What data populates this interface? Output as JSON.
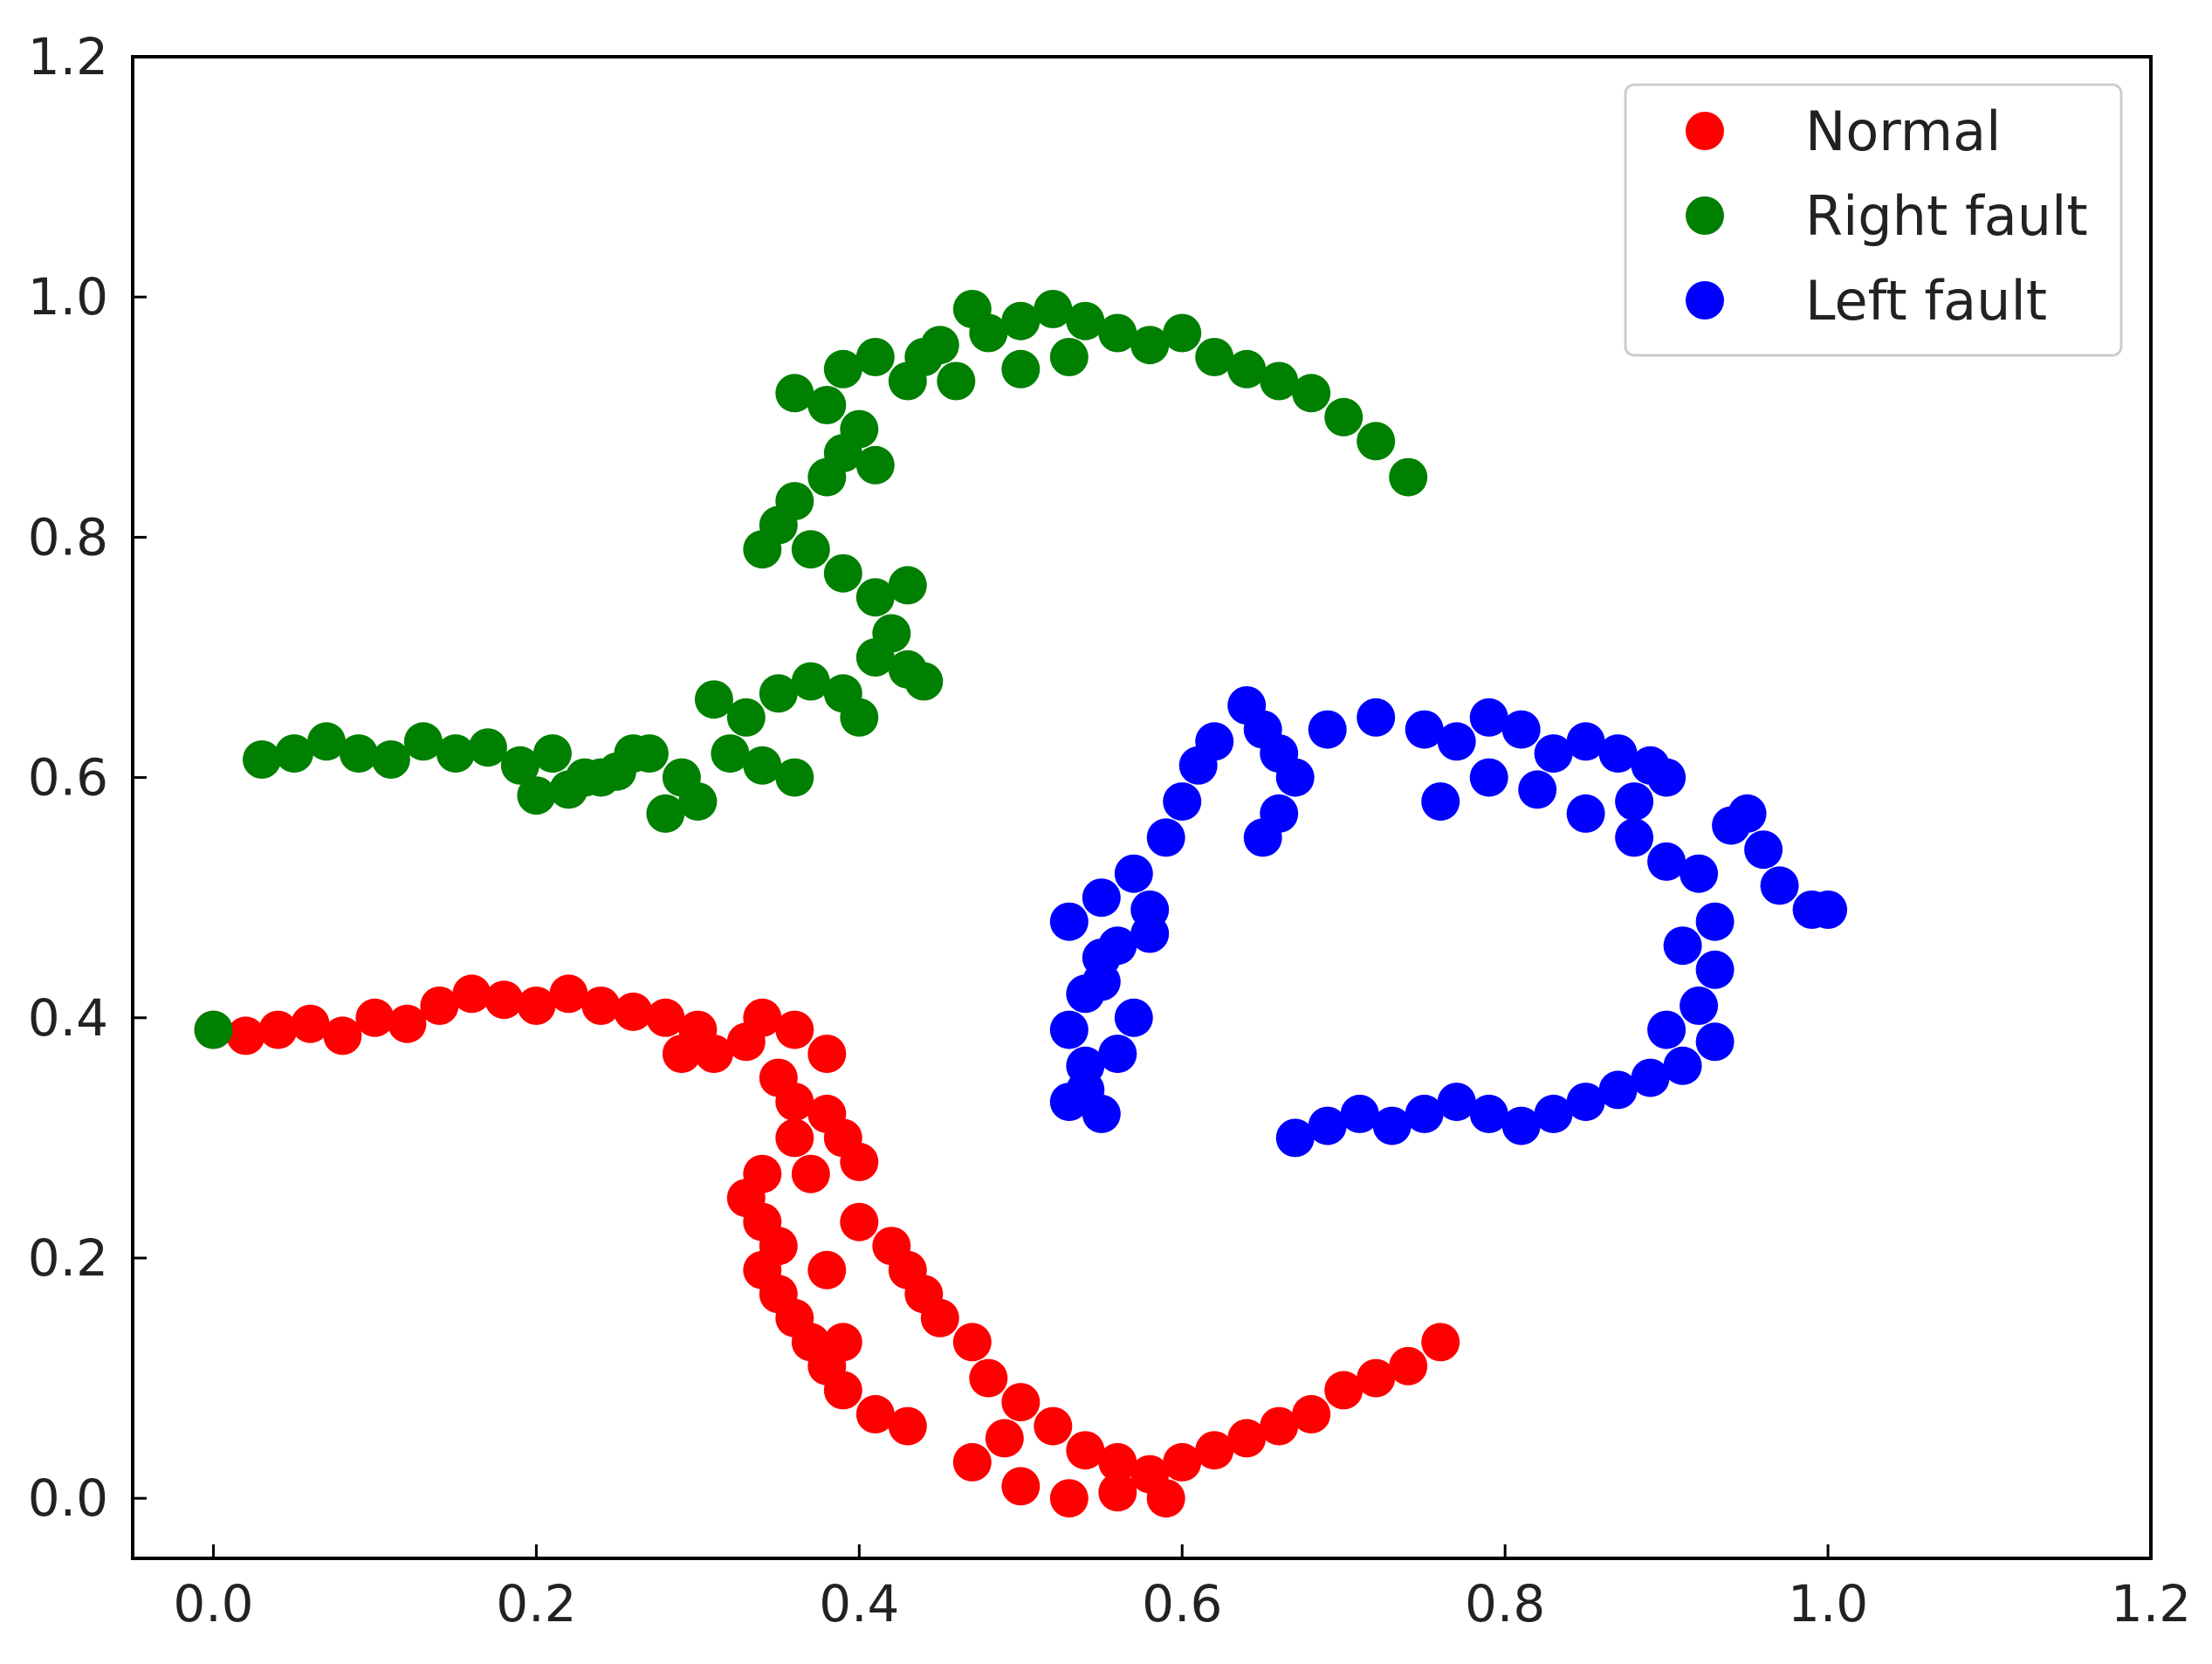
{
  "chart_data": {
    "type": "scatter",
    "title": "",
    "xlabel": "",
    "ylabel": "",
    "xlim": [
      -0.05,
      1.2
    ],
    "ylim": [
      -0.05,
      1.2
    ],
    "xticks": [
      "0.0",
      "0.2",
      "0.4",
      "0.6",
      "0.8",
      "1.0",
      "1.2"
    ],
    "yticks": [
      "0.0",
      "0.2",
      "0.4",
      "0.6",
      "0.8",
      "1.0",
      "1.2"
    ],
    "grid": false,
    "ticks_direction": "in",
    "legend_position": "top-right",
    "series": [
      {
        "name": "Normal",
        "color": "#ff0000",
        "points": [
          [
            0.0,
            0.39
          ],
          [
            0.02,
            0.385
          ],
          [
            0.04,
            0.39
          ],
          [
            0.06,
            0.395
          ],
          [
            0.08,
            0.385
          ],
          [
            0.1,
            0.4
          ],
          [
            0.12,
            0.395
          ],
          [
            0.14,
            0.41
          ],
          [
            0.16,
            0.42
          ],
          [
            0.18,
            0.415
          ],
          [
            0.2,
            0.41
          ],
          [
            0.22,
            0.42
          ],
          [
            0.24,
            0.41
          ],
          [
            0.26,
            0.405
          ],
          [
            0.28,
            0.4
          ],
          [
            0.3,
            0.39
          ],
          [
            0.31,
            0.37
          ],
          [
            0.33,
            0.38
          ],
          [
            0.34,
            0.4
          ],
          [
            0.36,
            0.39
          ],
          [
            0.38,
            0.37
          ],
          [
            0.35,
            0.35
          ],
          [
            0.36,
            0.33
          ],
          [
            0.38,
            0.32
          ],
          [
            0.39,
            0.3
          ],
          [
            0.4,
            0.28
          ],
          [
            0.37,
            0.27
          ],
          [
            0.34,
            0.27
          ],
          [
            0.33,
            0.25
          ],
          [
            0.34,
            0.23
          ],
          [
            0.35,
            0.21
          ],
          [
            0.34,
            0.19
          ],
          [
            0.35,
            0.17
          ],
          [
            0.36,
            0.15
          ],
          [
            0.37,
            0.13
          ],
          [
            0.38,
            0.11
          ],
          [
            0.39,
            0.09
          ],
          [
            0.41,
            0.07
          ],
          [
            0.43,
            0.06
          ],
          [
            0.42,
            0.21
          ],
          [
            0.43,
            0.19
          ],
          [
            0.44,
            0.17
          ],
          [
            0.45,
            0.15
          ],
          [
            0.47,
            0.13
          ],
          [
            0.48,
            0.1
          ],
          [
            0.5,
            0.08
          ],
          [
            0.52,
            0.06
          ],
          [
            0.54,
            0.04
          ],
          [
            0.56,
            0.03
          ],
          [
            0.58,
            0.02
          ],
          [
            0.6,
            0.03
          ],
          [
            0.62,
            0.04
          ],
          [
            0.64,
            0.05
          ],
          [
            0.66,
            0.06
          ],
          [
            0.68,
            0.07
          ],
          [
            0.7,
            0.09
          ],
          [
            0.72,
            0.1
          ],
          [
            0.74,
            0.11
          ],
          [
            0.76,
            0.13
          ],
          [
            0.47,
            0.03
          ],
          [
            0.5,
            0.01
          ],
          [
            0.53,
            0.0
          ],
          [
            0.56,
            0.005
          ],
          [
            0.59,
            0.0
          ],
          [
            0.49,
            0.05
          ],
          [
            0.39,
            0.13
          ],
          [
            0.38,
            0.19
          ],
          [
            0.4,
            0.23
          ],
          [
            0.36,
            0.3
          ],
          [
            0.29,
            0.37
          ]
        ]
      },
      {
        "name": "Right fault",
        "color": "#008000",
        "points": [
          [
            0.0,
            0.39
          ],
          [
            0.03,
            0.615
          ],
          [
            0.05,
            0.62
          ],
          [
            0.07,
            0.63
          ],
          [
            0.09,
            0.62
          ],
          [
            0.11,
            0.615
          ],
          [
            0.13,
            0.63
          ],
          [
            0.15,
            0.62
          ],
          [
            0.17,
            0.625
          ],
          [
            0.19,
            0.61
          ],
          [
            0.21,
            0.62
          ],
          [
            0.23,
            0.6
          ],
          [
            0.22,
            0.59
          ],
          [
            0.25,
            0.605
          ],
          [
            0.27,
            0.62
          ],
          [
            0.29,
            0.6
          ],
          [
            0.3,
            0.58
          ],
          [
            0.28,
            0.57
          ],
          [
            0.32,
            0.62
          ],
          [
            0.34,
            0.61
          ],
          [
            0.36,
            0.6
          ],
          [
            0.33,
            0.65
          ],
          [
            0.35,
            0.67
          ],
          [
            0.37,
            0.68
          ],
          [
            0.39,
            0.67
          ],
          [
            0.4,
            0.65
          ],
          [
            0.41,
            0.7
          ],
          [
            0.43,
            0.69
          ],
          [
            0.44,
            0.68
          ],
          [
            0.42,
            0.72
          ],
          [
            0.43,
            0.76
          ],
          [
            0.41,
            0.75
          ],
          [
            0.39,
            0.77
          ],
          [
            0.37,
            0.79
          ],
          [
            0.35,
            0.81
          ],
          [
            0.34,
            0.79
          ],
          [
            0.36,
            0.83
          ],
          [
            0.38,
            0.85
          ],
          [
            0.39,
            0.87
          ],
          [
            0.41,
            0.86
          ],
          [
            0.4,
            0.89
          ],
          [
            0.38,
            0.91
          ],
          [
            0.36,
            0.92
          ],
          [
            0.39,
            0.94
          ],
          [
            0.41,
            0.95
          ],
          [
            0.43,
            0.93
          ],
          [
            0.44,
            0.95
          ],
          [
            0.46,
            0.93
          ],
          [
            0.48,
            0.97
          ],
          [
            0.5,
            0.98
          ],
          [
            0.52,
            0.99
          ],
          [
            0.54,
            0.98
          ],
          [
            0.56,
            0.97
          ],
          [
            0.58,
            0.96
          ],
          [
            0.6,
            0.97
          ],
          [
            0.62,
            0.95
          ],
          [
            0.64,
            0.94
          ],
          [
            0.66,
            0.93
          ],
          [
            0.68,
            0.92
          ],
          [
            0.7,
            0.9
          ],
          [
            0.72,
            0.88
          ],
          [
            0.74,
            0.85
          ],
          [
            0.5,
            0.94
          ],
          [
            0.53,
            0.95
          ],
          [
            0.47,
            0.99
          ],
          [
            0.45,
            0.96
          ],
          [
            0.26,
            0.62
          ],
          [
            0.24,
            0.6
          ],
          [
            0.2,
            0.585
          ],
          [
            0.31,
            0.665
          ]
        ]
      },
      {
        "name": "Left fault",
        "color": "#0000ff",
        "points": [
          [
            0.53,
            0.33
          ],
          [
            0.55,
            0.32
          ],
          [
            0.54,
            0.36
          ],
          [
            0.53,
            0.39
          ],
          [
            0.54,
            0.42
          ],
          [
            0.55,
            0.45
          ],
          [
            0.53,
            0.48
          ],
          [
            0.55,
            0.5
          ],
          [
            0.57,
            0.52
          ],
          [
            0.58,
            0.49
          ],
          [
            0.59,
            0.55
          ],
          [
            0.6,
            0.58
          ],
          [
            0.61,
            0.61
          ],
          [
            0.62,
            0.63
          ],
          [
            0.64,
            0.66
          ],
          [
            0.65,
            0.64
          ],
          [
            0.66,
            0.62
          ],
          [
            0.67,
            0.6
          ],
          [
            0.66,
            0.57
          ],
          [
            0.65,
            0.55
          ],
          [
            0.69,
            0.64
          ],
          [
            0.72,
            0.65
          ],
          [
            0.75,
            0.64
          ],
          [
            0.77,
            0.63
          ],
          [
            0.79,
            0.65
          ],
          [
            0.81,
            0.64
          ],
          [
            0.83,
            0.62
          ],
          [
            0.85,
            0.63
          ],
          [
            0.87,
            0.62
          ],
          [
            0.89,
            0.61
          ],
          [
            0.9,
            0.6
          ],
          [
            0.88,
            0.58
          ],
          [
            0.85,
            0.57
          ],
          [
            0.82,
            0.59
          ],
          [
            0.79,
            0.6
          ],
          [
            0.76,
            0.58
          ],
          [
            0.88,
            0.55
          ],
          [
            0.9,
            0.53
          ],
          [
            0.92,
            0.52
          ],
          [
            0.94,
            0.56
          ],
          [
            0.95,
            0.57
          ],
          [
            0.96,
            0.54
          ],
          [
            0.97,
            0.51
          ],
          [
            0.99,
            0.49
          ],
          [
            1.0,
            0.49
          ],
          [
            0.93,
            0.48
          ],
          [
            0.91,
            0.46
          ],
          [
            0.93,
            0.44
          ],
          [
            0.92,
            0.41
          ],
          [
            0.93,
            0.38
          ],
          [
            0.91,
            0.36
          ],
          [
            0.9,
            0.39
          ],
          [
            0.89,
            0.35
          ],
          [
            0.87,
            0.34
          ],
          [
            0.85,
            0.33
          ],
          [
            0.83,
            0.32
          ],
          [
            0.81,
            0.31
          ],
          [
            0.79,
            0.32
          ],
          [
            0.77,
            0.33
          ],
          [
            0.75,
            0.32
          ],
          [
            0.73,
            0.31
          ],
          [
            0.71,
            0.32
          ],
          [
            0.69,
            0.31
          ],
          [
            0.67,
            0.3
          ],
          [
            0.56,
            0.37
          ],
          [
            0.57,
            0.4
          ],
          [
            0.56,
            0.46
          ],
          [
            0.54,
            0.34
          ],
          [
            0.55,
            0.43
          ],
          [
            0.58,
            0.47
          ]
        ]
      }
    ]
  }
}
